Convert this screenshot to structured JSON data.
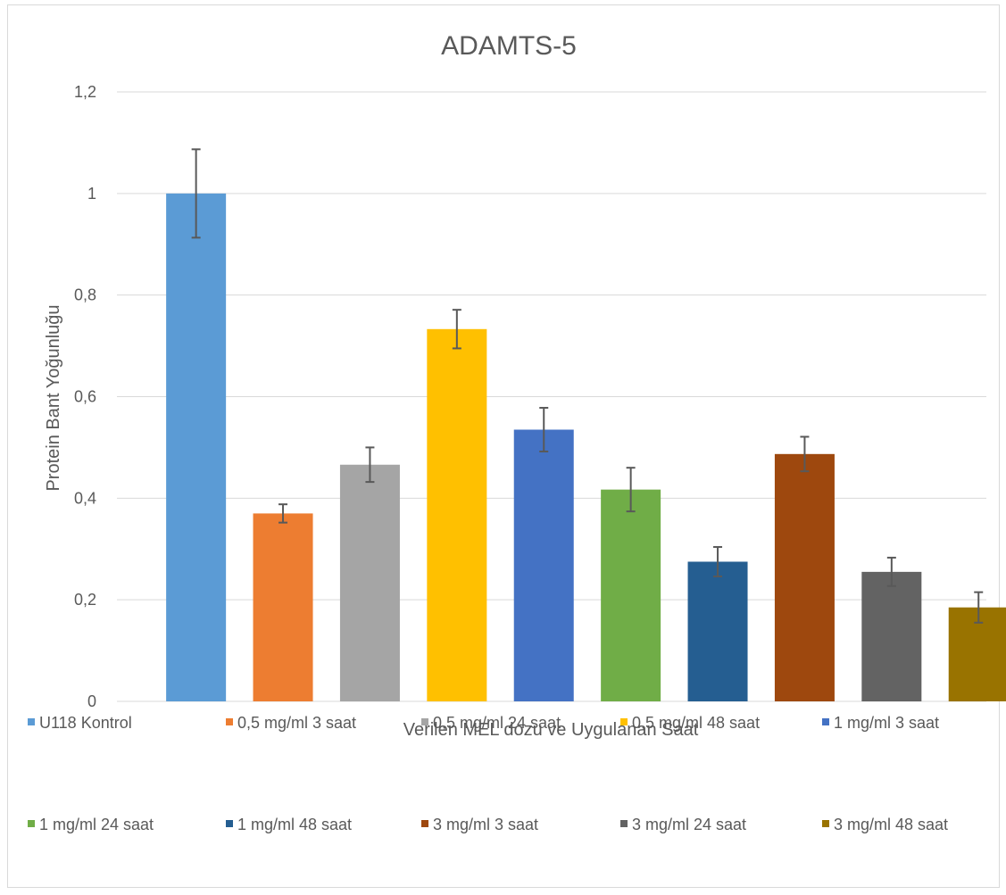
{
  "chart_data": {
    "type": "bar",
    "title": "ADAMTS-5",
    "xlabel": "Verilen MEL dozu ve Uygulanan Saat",
    "ylabel": "Protein Bant Yoğunluğu",
    "ylim": [
      0,
      1.2
    ],
    "yticks": [
      0,
      0.2,
      0.4,
      0.6,
      0.8,
      1,
      1.2
    ],
    "ytick_labels": [
      "0",
      "0,2",
      "0,4",
      "0,6",
      "0,8",
      "1",
      "1,2"
    ],
    "grid": true,
    "legend_position": "bottom",
    "categories": [
      "U118 Kontrol",
      "0,5 mg/ml 3 saat",
      "0,5 mg/ml 24 saat",
      "0,5 mg/ml 48 saat",
      "1 mg/ml 3 saat",
      "1 mg/ml 24 saat",
      "1 mg/ml 48 saat",
      "3 mg/ml 3 saat",
      "3 mg/ml 24 saat",
      "3 mg/ml 48 saat"
    ],
    "values": [
      1.0,
      0.37,
      0.466,
      0.733,
      0.535,
      0.417,
      0.275,
      0.487,
      0.255,
      0.185
    ],
    "errors": [
      0.087,
      0.018,
      0.034,
      0.038,
      0.043,
      0.043,
      0.029,
      0.034,
      0.028,
      0.03
    ],
    "colors": [
      "#5B9BD5",
      "#ED7D31",
      "#A5A5A5",
      "#FFC000",
      "#4472C4",
      "#70AD47",
      "#255E91",
      "#9E480E",
      "#636363",
      "#997300"
    ]
  }
}
